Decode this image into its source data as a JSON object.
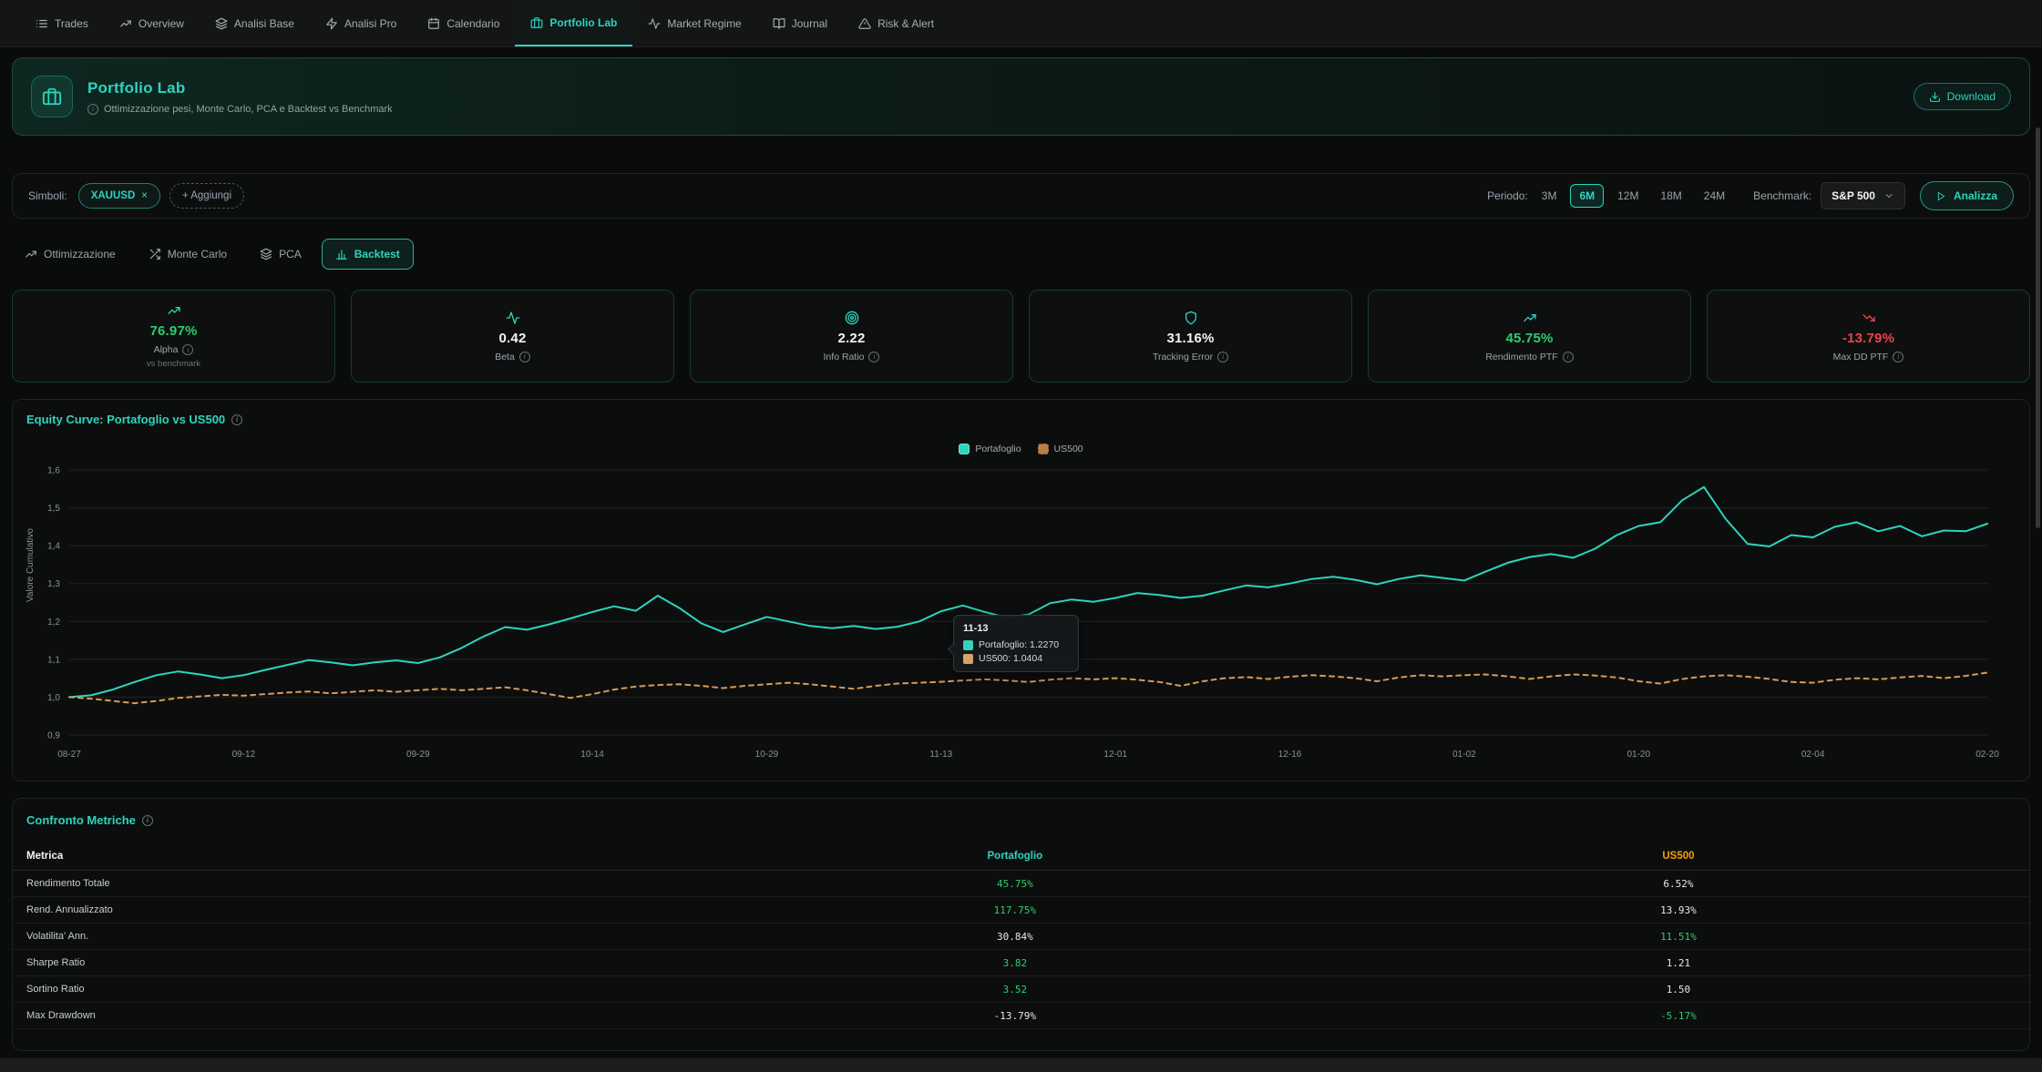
{
  "nav": {
    "items": [
      {
        "label": "Trades",
        "icon": "list-icon"
      },
      {
        "label": "Overview",
        "icon": "trending-up-icon"
      },
      {
        "label": "Analisi Base",
        "icon": "layers-icon"
      },
      {
        "label": "Analisi Pro",
        "icon": "zap-icon"
      },
      {
        "label": "Calendario",
        "icon": "calendar-icon"
      },
      {
        "label": "Portfolio Lab",
        "icon": "briefcase-icon"
      },
      {
        "label": "Market Regime",
        "icon": "activity-icon"
      },
      {
        "label": "Journal",
        "icon": "book-icon"
      },
      {
        "label": "Risk & Alert",
        "icon": "alert-triangle-icon"
      }
    ],
    "active": "Portfolio Lab"
  },
  "banner": {
    "title": "Portfolio Lab",
    "subtitle": "Ottimizzazione pesi, Monte Carlo, PCA e Backtest vs Benchmark",
    "download_label": "Download"
  },
  "controls": {
    "symbols_label": "Simboli:",
    "symbol_chip": "XAUUSD",
    "chip_close": "×",
    "add_label": "+ Aggiungi",
    "period_label": "Periodo:",
    "periods": [
      "3M",
      "6M",
      "12M",
      "18M",
      "24M"
    ],
    "active_period": "6M",
    "benchmark_label": "Benchmark:",
    "benchmark_value": "S&P 500",
    "analyze_label": "Analizza"
  },
  "tabs": {
    "items": [
      "Ottimizzazione",
      "Monte Carlo",
      "PCA",
      "Backtest"
    ],
    "active": "Backtest"
  },
  "metrics": [
    {
      "value": "76.97%",
      "label": "Alpha",
      "sub": "vs benchmark",
      "color": "#2ecc71",
      "icon": "trending-up-icon",
      "icon_color": "#2dd4bf"
    },
    {
      "value": "0.42",
      "label": "Beta",
      "sub": "",
      "color": "#f3f4f6",
      "icon": "activity-icon",
      "icon_color": "#2dd4bf"
    },
    {
      "value": "2.22",
      "label": "Info Ratio",
      "sub": "",
      "color": "#f3f4f6",
      "icon": "target-icon",
      "icon_color": "#2dd4bf"
    },
    {
      "value": "31.16%",
      "label": "Tracking Error",
      "sub": "",
      "color": "#f3f4f6",
      "icon": "shield-icon",
      "icon_color": "#2dd4bf"
    },
    {
      "value": "45.75%",
      "label": "Rendimento PTF",
      "sub": "",
      "color": "#2ecc71",
      "icon": "trending-up-icon",
      "icon_color": "#2dd4bf"
    },
    {
      "value": "-13.79%",
      "label": "Max DD PTF",
      "sub": "",
      "color": "#ef4444",
      "icon": "trending-down-icon",
      "icon_color": "#ef4444"
    }
  ],
  "chart_panel": {
    "title": "Equity Curve: Portafoglio vs US500"
  },
  "chart_data": {
    "type": "line",
    "title": "Equity Curve: Portafoglio vs US500",
    "xlabel": "",
    "ylabel": "Valore Cumulativo",
    "ylim": [
      0.9,
      1.6
    ],
    "grid": true,
    "legend_position": "top-center",
    "yticks": [
      0.9,
      1.0,
      1.1,
      1.2,
      1.3,
      1.4,
      1.5,
      1.6
    ],
    "ytick_labels": [
      "0,9",
      "1,0",
      "1,1",
      "1,2",
      "1,3",
      "1,4",
      "1,5",
      "1,6"
    ],
    "xticks": [
      "08-27",
      "09-12",
      "09-29",
      "10-14",
      "10-29",
      "11-13",
      "12-01",
      "12-16",
      "01-02",
      "01-20",
      "02-04",
      "02-20"
    ],
    "xtick_indices": [
      0,
      8,
      16,
      24,
      32,
      40,
      48,
      56,
      64,
      72,
      80,
      88
    ],
    "series": [
      {
        "name": "Portafoglio",
        "color": "#2dd4bf",
        "style": "solid",
        "values": [
          1.0,
          1.005,
          1.02,
          1.04,
          1.058,
          1.068,
          1.06,
          1.05,
          1.058,
          1.072,
          1.085,
          1.098,
          1.092,
          1.084,
          1.092,
          1.097,
          1.09,
          1.105,
          1.13,
          1.16,
          1.185,
          1.178,
          1.192,
          1.208,
          1.225,
          1.24,
          1.228,
          1.268,
          1.235,
          1.195,
          1.172,
          1.192,
          1.212,
          1.2,
          1.188,
          1.182,
          1.188,
          1.18,
          1.186,
          1.2,
          1.227,
          1.242,
          1.225,
          1.21,
          1.218,
          1.248,
          1.258,
          1.252,
          1.262,
          1.275,
          1.27,
          1.262,
          1.268,
          1.282,
          1.295,
          1.29,
          1.3,
          1.312,
          1.318,
          1.31,
          1.298,
          1.312,
          1.322,
          1.315,
          1.308,
          1.332,
          1.355,
          1.37,
          1.378,
          1.368,
          1.392,
          1.428,
          1.452,
          1.462,
          1.52,
          1.555,
          1.47,
          1.405,
          1.398,
          1.428,
          1.422,
          1.45,
          1.462,
          1.438,
          1.452,
          1.425,
          1.44,
          1.438,
          1.458
        ]
      },
      {
        "name": "US500",
        "color": "#d69a5a",
        "style": "dashed",
        "values": [
          1.0,
          0.996,
          0.99,
          0.984,
          0.99,
          0.998,
          1.002,
          1.006,
          1.004,
          1.008,
          1.012,
          1.015,
          1.01,
          1.014,
          1.018,
          1.014,
          1.018,
          1.022,
          1.018,
          1.022,
          1.026,
          1.018,
          1.008,
          0.998,
          1.008,
          1.02,
          1.028,
          1.032,
          1.034,
          1.03,
          1.024,
          1.03,
          1.034,
          1.038,
          1.034,
          1.028,
          1.022,
          1.03,
          1.036,
          1.038,
          1.0404,
          1.044,
          1.047,
          1.044,
          1.04,
          1.046,
          1.05,
          1.047,
          1.05,
          1.046,
          1.04,
          1.03,
          1.042,
          1.05,
          1.053,
          1.048,
          1.054,
          1.058,
          1.055,
          1.05,
          1.042,
          1.052,
          1.058,
          1.055,
          1.058,
          1.06,
          1.055,
          1.048,
          1.055,
          1.06,
          1.057,
          1.052,
          1.042,
          1.036,
          1.048,
          1.055,
          1.058,
          1.054,
          1.048,
          1.04,
          1.038,
          1.046,
          1.05,
          1.047,
          1.052,
          1.056,
          1.05,
          1.056,
          1.065
        ]
      }
    ]
  },
  "tooltip": {
    "date": "11-13",
    "rows": [
      {
        "text": "Portafoglio: 1.2270",
        "color": "#35d2b6"
      },
      {
        "text": "US500: 1.0404",
        "color": "#d8a169"
      }
    ]
  },
  "table": {
    "title": "Confronto Metriche",
    "headers": {
      "metric": "Metrica",
      "portfolio": "Portafoglio",
      "benchmark": "US500"
    },
    "rows": [
      {
        "metric": "Rendimento Totale",
        "portfolio": "45.75%",
        "benchmark": "6.52%",
        "portfolio_color": "#2ecc71",
        "benchmark_color": "#e5e7eb"
      },
      {
        "metric": "Rend. Annualizzato",
        "portfolio": "117.75%",
        "benchmark": "13.93%",
        "portfolio_color": "#2ecc71",
        "benchmark_color": "#e5e7eb"
      },
      {
        "metric": "Volatilita' Ann.",
        "portfolio": "30.84%",
        "benchmark": "11.51%",
        "portfolio_color": "#e5e7eb",
        "benchmark_color": "#2ecc71"
      },
      {
        "metric": "Sharpe Ratio",
        "portfolio": "3.82",
        "benchmark": "1.21",
        "portfolio_color": "#2ecc71",
        "benchmark_color": "#e5e7eb"
      },
      {
        "metric": "Sortino Ratio",
        "portfolio": "3.52",
        "benchmark": "1.50",
        "portfolio_color": "#2ecc71",
        "benchmark_color": "#e5e7eb"
      },
      {
        "metric": "Max Drawdown",
        "portfolio": "-13.79%",
        "benchmark": "-5.17%",
        "portfolio_color": "#e5e7eb",
        "benchmark_color": "#2ecc71"
      }
    ]
  },
  "colors": {
    "accent": "#2dd4bf",
    "positive": "#2ecc71",
    "negative": "#ef4444",
    "benchmark": "#d69a5a",
    "benchmark_header": "#f59e0b"
  }
}
